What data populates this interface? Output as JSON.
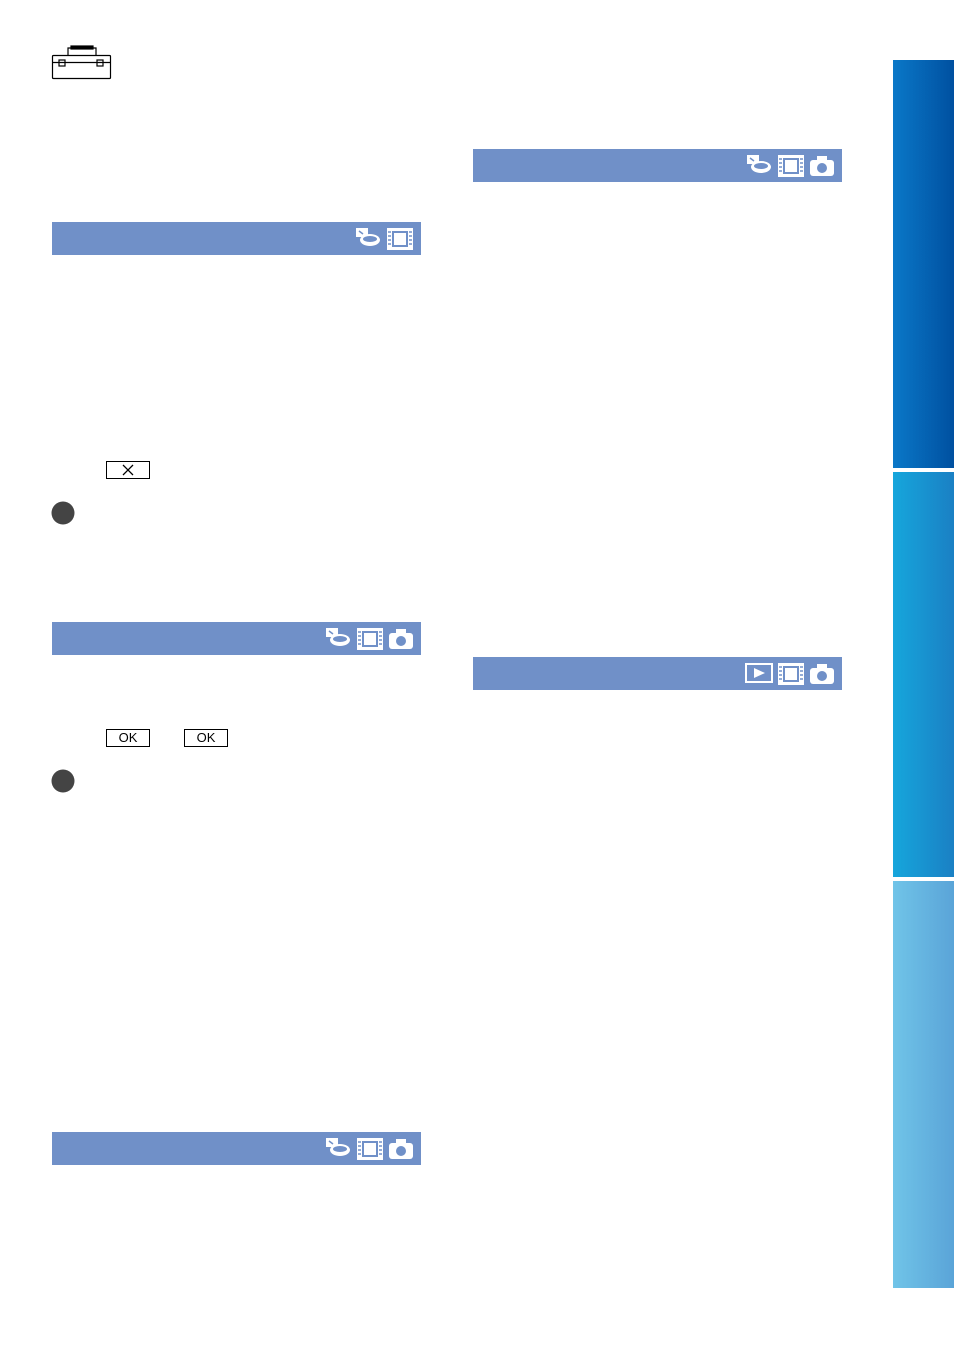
{
  "buttons": [
    "OK",
    "OK"
  ]
}
